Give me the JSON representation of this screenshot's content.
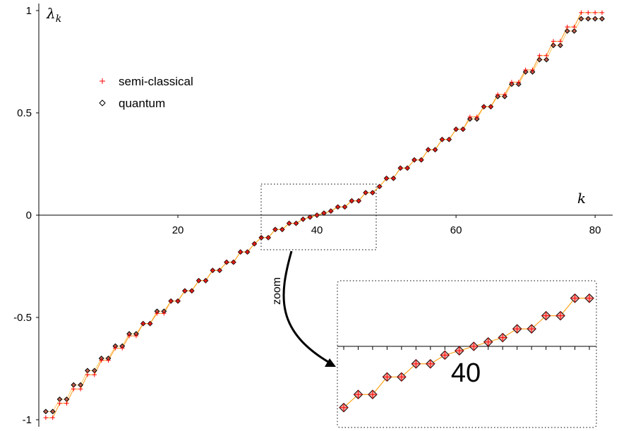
{
  "chart_data": {
    "type": "scatter",
    "xlabel": "k",
    "ylabel": "λ_k",
    "xlim": [
      0,
      82
    ],
    "ylim": [
      -1,
      1
    ],
    "x_ticks": [
      20,
      40,
      60,
      80
    ],
    "y_ticks": [
      -1,
      -0.5,
      0,
      0.5,
      1
    ],
    "x_tick_labels": [
      "20",
      "40",
      "60",
      "80"
    ],
    "y_tick_labels": [
      "-1",
      "-0.5",
      "0",
      "0.5",
      "1"
    ],
    "legend_position": "top-left",
    "series": [
      {
        "name": "semi-classical",
        "marker": "+",
        "color": "#ff0000",
        "x": [
          1,
          2,
          3,
          4,
          5,
          6,
          7,
          8,
          9,
          10,
          11,
          12,
          13,
          14,
          15,
          16,
          17,
          18,
          19,
          20,
          21,
          22,
          23,
          24,
          25,
          26,
          27,
          28,
          29,
          30,
          31,
          32,
          33,
          34,
          35,
          36,
          37,
          38,
          39,
          40,
          41,
          42,
          43,
          44,
          45,
          46,
          47,
          48,
          49,
          50,
          51,
          52,
          53,
          54,
          55,
          56,
          57,
          58,
          59,
          60,
          61,
          62,
          63,
          64,
          65,
          66,
          67,
          68,
          69,
          70,
          71,
          72,
          73,
          74,
          75,
          76,
          77,
          78,
          79,
          80,
          81
        ],
        "y": [
          -0.99,
          -0.99,
          -0.92,
          -0.92,
          -0.85,
          -0.85,
          -0.78,
          -0.78,
          -0.71,
          -0.71,
          -0.65,
          -0.65,
          -0.59,
          -0.59,
          -0.53,
          -0.53,
          -0.48,
          -0.48,
          -0.42,
          -0.42,
          -0.37,
          -0.37,
          -0.32,
          -0.32,
          -0.27,
          -0.27,
          -0.23,
          -0.23,
          -0.18,
          -0.18,
          -0.14,
          -0.11,
          -0.11,
          -0.07,
          -0.07,
          -0.04,
          -0.04,
          -0.02,
          -0.01,
          0,
          0.01,
          0.02,
          0.04,
          0.04,
          0.07,
          0.07,
          0.11,
          0.11,
          0.14,
          0.18,
          0.18,
          0.23,
          0.23,
          0.27,
          0.27,
          0.32,
          0.32,
          0.37,
          0.37,
          0.42,
          0.42,
          0.48,
          0.48,
          0.53,
          0.53,
          0.59,
          0.59,
          0.65,
          0.65,
          0.71,
          0.71,
          0.78,
          0.78,
          0.85,
          0.85,
          0.92,
          0.92,
          0.99,
          0.99,
          0.99,
          0.99
        ]
      },
      {
        "name": "quantum",
        "marker": "diamond",
        "color": "#000000",
        "x": [
          1,
          2,
          3,
          4,
          5,
          6,
          7,
          8,
          9,
          10,
          11,
          12,
          13,
          14,
          15,
          16,
          17,
          18,
          19,
          20,
          21,
          22,
          23,
          24,
          25,
          26,
          27,
          28,
          29,
          30,
          31,
          32,
          33,
          34,
          35,
          36,
          37,
          38,
          39,
          40,
          41,
          42,
          43,
          44,
          45,
          46,
          47,
          48,
          49,
          50,
          51,
          52,
          53,
          54,
          55,
          56,
          57,
          58,
          59,
          60,
          61,
          62,
          63,
          64,
          65,
          66,
          67,
          68,
          69,
          70,
          71,
          72,
          73,
          74,
          75,
          76,
          77,
          78,
          79,
          80,
          81
        ],
        "y": [
          -0.96,
          -0.96,
          -0.9,
          -0.9,
          -0.83,
          -0.83,
          -0.76,
          -0.76,
          -0.7,
          -0.7,
          -0.64,
          -0.64,
          -0.58,
          -0.58,
          -0.53,
          -0.53,
          -0.47,
          -0.47,
          -0.42,
          -0.42,
          -0.37,
          -0.37,
          -0.32,
          -0.32,
          -0.27,
          -0.27,
          -0.23,
          -0.23,
          -0.18,
          -0.18,
          -0.14,
          -0.11,
          -0.11,
          -0.07,
          -0.07,
          -0.04,
          -0.04,
          -0.02,
          -0.01,
          0,
          0.01,
          0.02,
          0.04,
          0.04,
          0.07,
          0.07,
          0.11,
          0.11,
          0.14,
          0.18,
          0.18,
          0.23,
          0.23,
          0.27,
          0.27,
          0.32,
          0.32,
          0.37,
          0.37,
          0.42,
          0.42,
          0.47,
          0.47,
          0.53,
          0.53,
          0.58,
          0.58,
          0.64,
          0.64,
          0.7,
          0.7,
          0.76,
          0.76,
          0.83,
          0.83,
          0.9,
          0.9,
          0.96,
          0.96,
          0.96,
          0.96
        ]
      }
    ],
    "zoom": {
      "label": "zoom",
      "x_range": [
        31,
        48
      ],
      "tick_label": "40"
    }
  }
}
